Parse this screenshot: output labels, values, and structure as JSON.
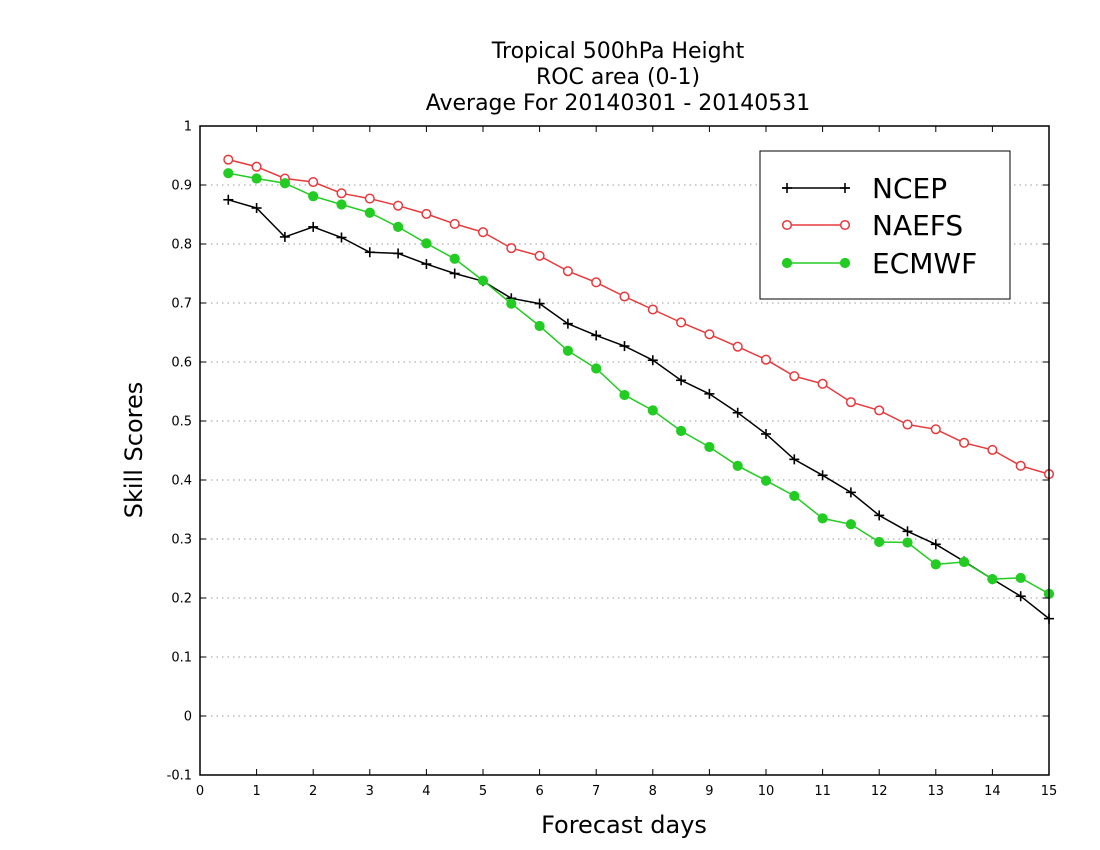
{
  "chart_data": {
    "type": "line",
    "title_lines": [
      "Tropical 500hPa Height",
      "ROC area (0-1)",
      "Average For 20140301 - 20140531"
    ],
    "xlabel": "Forecast days",
    "ylabel": "Skill Scores",
    "xlim": [
      0,
      15
    ],
    "ylim": [
      -0.1,
      1
    ],
    "xticks": [
      0,
      1,
      2,
      3,
      4,
      5,
      6,
      7,
      8,
      9,
      10,
      11,
      12,
      13,
      14,
      15
    ],
    "xtick_labels": [
      "0",
      "1",
      "2",
      "3",
      "4",
      "5",
      "6",
      "7",
      "8",
      "9",
      "10",
      "11",
      "12",
      "13",
      "14",
      "15"
    ],
    "yticks": [
      -0.1,
      0,
      0.1,
      0.2,
      0.3,
      0.4,
      0.5,
      0.6,
      0.7,
      0.8,
      0.9,
      1
    ],
    "ytick_labels": [
      "-0.1",
      "0",
      "0.1",
      "0.2",
      "0.3",
      "0.4",
      "0.5",
      "0.6",
      "0.7",
      "0.8",
      "0.9",
      "1"
    ],
    "grid": "horizontal-dotted",
    "legend_position": "top-right",
    "x": [
      0.5,
      1,
      1.5,
      2,
      2.5,
      3,
      3.5,
      4,
      4.5,
      5,
      5.5,
      6,
      6.5,
      7,
      7.5,
      8,
      8.5,
      9,
      9.5,
      10,
      10.5,
      11,
      11.5,
      12,
      12.5,
      13,
      13.5,
      14,
      14.5,
      15
    ],
    "series": [
      {
        "name": "NCEP",
        "color": "#000000",
        "marker": "plus",
        "values": [
          0.875,
          0.861,
          0.812,
          0.829,
          0.811,
          0.786,
          0.784,
          0.766,
          0.75,
          0.737,
          0.708,
          0.699,
          0.665,
          0.645,
          0.627,
          0.603,
          0.569,
          0.546,
          0.514,
          0.478,
          0.435,
          0.408,
          0.379,
          0.34,
          0.313,
          0.291,
          0.262,
          0.232,
          0.203,
          0.165
        ]
      },
      {
        "name": "NAEFS",
        "color": "#e8393c",
        "marker": "open-circle",
        "values": [
          0.943,
          0.931,
          0.911,
          0.905,
          0.886,
          0.877,
          0.865,
          0.851,
          0.834,
          0.82,
          0.793,
          0.78,
          0.754,
          0.735,
          0.711,
          0.689,
          0.667,
          0.647,
          0.626,
          0.604,
          0.576,
          0.563,
          0.532,
          0.518,
          0.494,
          0.486,
          0.463,
          0.451,
          0.424,
          0.41
        ]
      },
      {
        "name": "ECMWF",
        "color": "#22cc22",
        "marker": "filled-circle",
        "values": [
          0.92,
          0.911,
          0.903,
          0.881,
          0.867,
          0.853,
          0.829,
          0.801,
          0.775,
          0.738,
          0.699,
          0.661,
          0.619,
          0.589,
          0.544,
          0.518,
          0.483,
          0.456,
          0.424,
          0.399,
          0.373,
          0.335,
          0.325,
          0.295,
          0.294,
          0.257,
          0.261,
          0.232,
          0.234,
          0.207
        ]
      }
    ]
  }
}
